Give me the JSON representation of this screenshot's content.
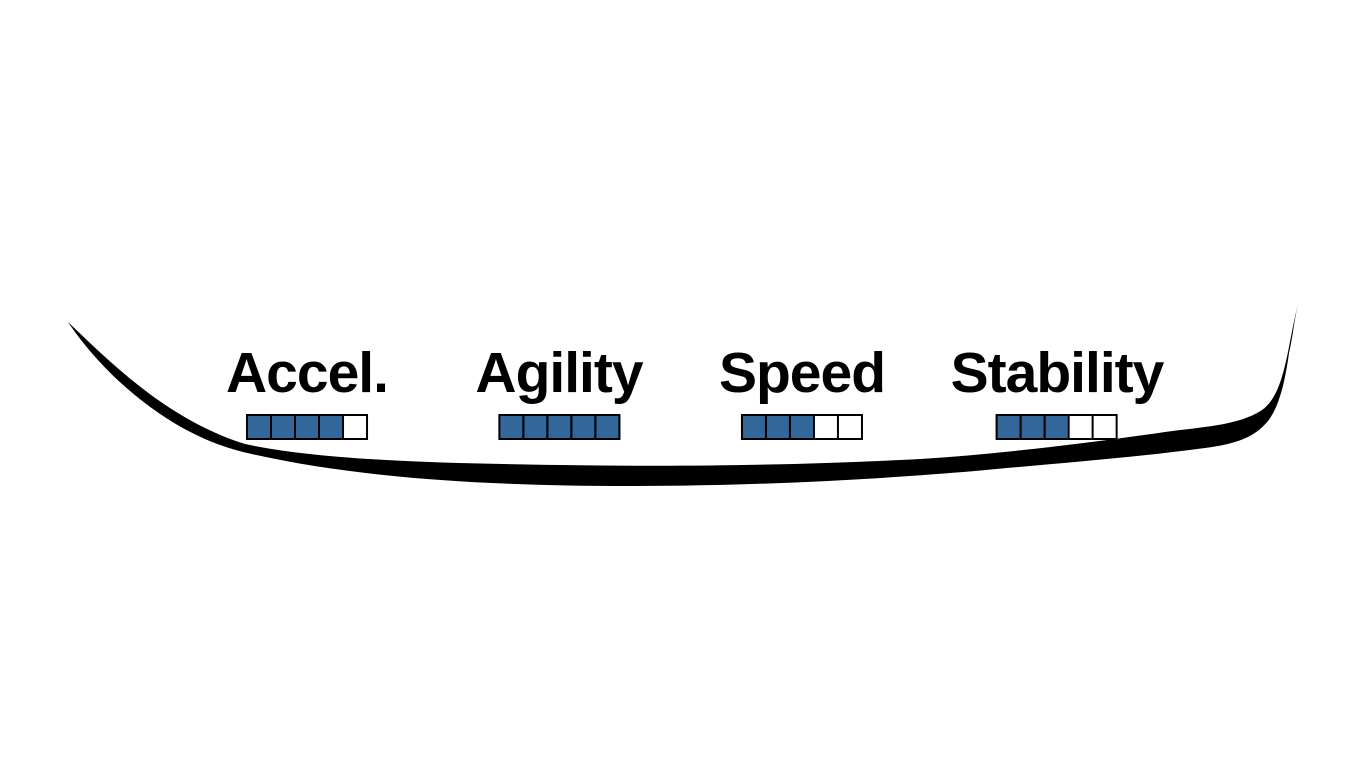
{
  "background_color": "#ffffff",
  "vehicle_outline": {
    "name": "vehicle-body-swoosh",
    "color": "#000000"
  },
  "stats_panel": {
    "segment_colors": {
      "filled": "#336699",
      "empty": "#ffffff",
      "border": "#000000"
    },
    "text_color": "#000000",
    "stats": [
      {
        "label": "Accel.",
        "value": 4,
        "max": 5
      },
      {
        "label": "Agility",
        "value": 5,
        "max": 5
      },
      {
        "label": "Speed",
        "value": 3,
        "max": 5
      },
      {
        "label": "Stability",
        "value": 3,
        "max": 5
      }
    ]
  }
}
